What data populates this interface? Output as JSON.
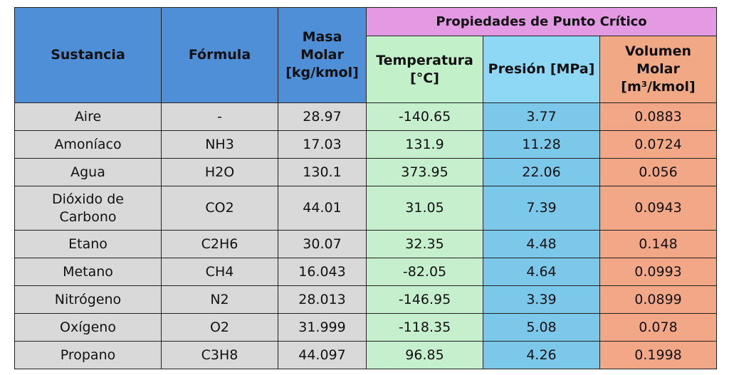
{
  "header": {
    "group": "Propiedades de Punto Crítico",
    "columns": [
      [
        "Sustancia"
      ],
      [
        "Fórmula"
      ],
      [
        "Masa",
        "Molar",
        "[kg/kmol]"
      ],
      [
        "Temperatura",
        "[°C]"
      ],
      [
        "Presión [MPa]"
      ],
      [
        "Volumen",
        "Molar",
        "[m³/kmol]"
      ]
    ]
  },
  "table": {
    "rows": [
      [
        "Aire",
        "-",
        "28.97",
        "-140.65",
        "3.77",
        "0.0883"
      ],
      [
        "Amoníaco",
        "NH3",
        "17.03",
        "131.9",
        "11.28",
        "0.0724"
      ],
      [
        "Agua",
        "H2O",
        "130.1",
        "373.95",
        "22.06",
        "0.056"
      ],
      [
        "Dióxido de Carbono",
        "CO2",
        "44.01",
        "31.05",
        "7.39",
        "0.0943"
      ],
      [
        "Etano",
        "C2H6",
        "30.07",
        "32.35",
        "4.48",
        "0.148"
      ],
      [
        "Metano",
        "CH4",
        "16.043",
        "-82.05",
        "4.64",
        "0.0993"
      ],
      [
        "Nitrógeno",
        "N2",
        "28.013",
        "-146.95",
        "3.39",
        "0.0899"
      ],
      [
        "Oxígeno",
        "O2",
        "31.999",
        "-118.35",
        "5.08",
        "0.078"
      ],
      [
        "Propano",
        "C3H8",
        "44.097",
        "96.85",
        "4.26",
        "0.1998"
      ]
    ]
  }
}
